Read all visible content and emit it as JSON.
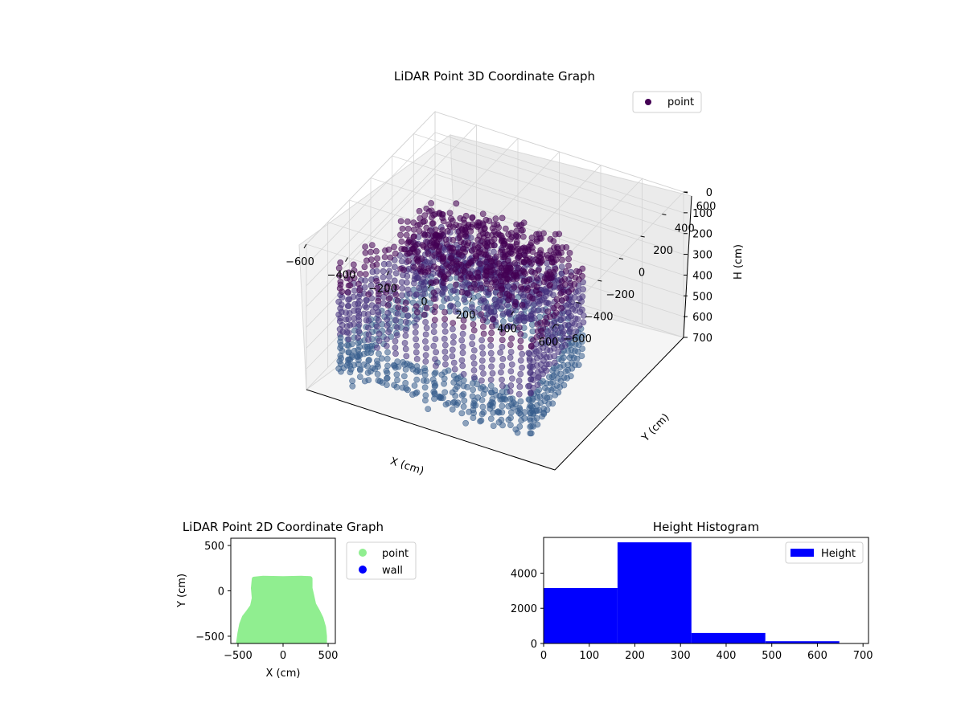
{
  "chart_data": [
    {
      "type": "scatter3d",
      "title": "LiDAR Point 3D Coordinate Graph",
      "xlabel": "X (cm)",
      "ylabel": "Y (cm)",
      "zlabel": "H (cm)",
      "x_ticks": [
        -600,
        -400,
        -200,
        0,
        200,
        400,
        600
      ],
      "y_ticks": [
        -600,
        -400,
        -200,
        0,
        200,
        400,
        600
      ],
      "z_ticks": [
        0,
        100,
        200,
        300,
        400,
        500,
        600,
        700
      ],
      "xlim": [
        -600,
        600
      ],
      "ylim": [
        -600,
        600
      ],
      "zlim": [
        700,
        0
      ],
      "z_inverted": true,
      "grid": true,
      "colormap": "viridis",
      "legend": {
        "position": "top-right",
        "entries": [
          {
            "label": "point",
            "color": "#440154"
          }
        ]
      },
      "series": [
        {
          "name": "point",
          "shape": "scanned room point cloud with vertical wall columns",
          "x_range": [
            -500,
            460
          ],
          "y_range": [
            -560,
            140
          ],
          "h_range": [
            0,
            650
          ]
        }
      ]
    },
    {
      "type": "scatter",
      "title": "LiDAR Point 2D Coordinate Graph",
      "xlabel": "X (cm)",
      "ylabel": "Y (cm)",
      "x_ticks": [
        -500,
        0,
        500
      ],
      "y_ticks": [
        -500,
        0,
        500
      ],
      "xlim": [
        -580,
        580
      ],
      "ylim": [
        -580,
        580
      ],
      "legend": {
        "position": "outside-right",
        "entries": [
          {
            "label": "point",
            "color": "#90ee90"
          },
          {
            "label": "wall",
            "color": "#0000ff"
          }
        ]
      },
      "series": [
        {
          "name": "point",
          "color": "#90ee90",
          "outline": [
            [
              -495,
              -580
            ],
            [
              -480,
              -470
            ],
            [
              -460,
              -370
            ],
            [
              -430,
              -290
            ],
            [
              -390,
              -240
            ],
            [
              -340,
              -170
            ],
            [
              -320,
              -80
            ],
            [
              -330,
              30
            ],
            [
              -320,
              130
            ],
            [
              -220,
              140
            ],
            [
              0,
              135
            ],
            [
              200,
              140
            ],
            [
              300,
              135
            ],
            [
              300,
              30
            ],
            [
              320,
              -60
            ],
            [
              340,
              -150
            ],
            [
              380,
              -220
            ],
            [
              420,
              -300
            ],
            [
              450,
              -400
            ],
            [
              460,
              -500
            ],
            [
              460,
              -580
            ]
          ]
        },
        {
          "name": "wall",
          "color": "#0000ff",
          "points": []
        }
      ]
    },
    {
      "type": "histogram",
      "title": "Height Histogram",
      "xlabel": "",
      "ylabel": "",
      "bins": [
        0,
        162,
        324,
        486,
        648
      ],
      "values": [
        3150,
        5750,
        600,
        130
      ],
      "color": "#0000ff",
      "x_ticks": [
        0,
        100,
        200,
        300,
        400,
        500,
        600,
        700
      ],
      "y_ticks": [
        0,
        2000,
        4000
      ],
      "xlim": [
        0,
        712
      ],
      "ylim": [
        0,
        6030
      ],
      "legend": {
        "position": "top-right",
        "entries": [
          {
            "label": "Height",
            "color": "#0000ff"
          }
        ]
      }
    }
  ]
}
